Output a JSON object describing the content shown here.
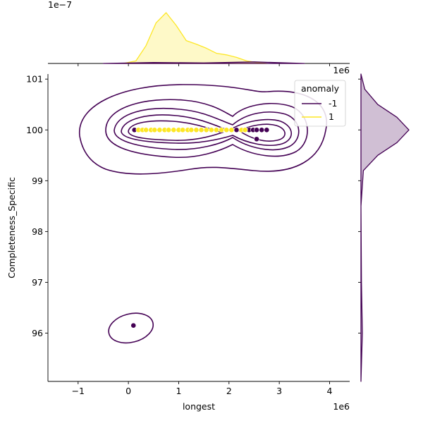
{
  "chart_data": {
    "type": "scatter",
    "title": "",
    "xlabel": "longest",
    "ylabel": "Completeness_Specific",
    "x_offset_text": "1e6",
    "y_top_offset_text": "1e6",
    "marg_x_offset_text": "1e−7",
    "xlim": [
      -1.6,
      4.4
    ],
    "ylim": [
      95.05,
      101.1
    ],
    "x_ticks": [
      "−1",
      "0",
      "1",
      "2",
      "3",
      "4"
    ],
    "x_tick_values": [
      -1,
      0,
      1,
      2,
      3,
      4
    ],
    "y_ticks": [
      "96",
      "97",
      "98",
      "99",
      "100",
      "101"
    ],
    "y_tick_values": [
      96,
      97,
      98,
      99,
      100,
      101
    ],
    "legend": {
      "title": "anomaly",
      "position": "upper right",
      "entries": [
        {
          "label": "-1",
          "color": "#440154"
        },
        {
          "label": "1",
          "color": "#fde725"
        }
      ]
    },
    "colors": {
      "anomaly_neg": "#440154",
      "anomaly_pos": "#fde725"
    },
    "series": [
      {
        "name": "-1",
        "color": "#440154",
        "points": [
          {
            "x": 0.1,
            "y": 96.15
          },
          {
            "x": 0.12,
            "y": 100.0
          },
          {
            "x": 2.15,
            "y": 100.0
          },
          {
            "x": 2.4,
            "y": 100.0
          },
          {
            "x": 2.48,
            "y": 100.0
          },
          {
            "x": 2.55,
            "y": 100.0
          },
          {
            "x": 2.65,
            "y": 100.0
          },
          {
            "x": 2.75,
            "y": 100.0
          },
          {
            "x": 2.55,
            "y": 99.82
          }
        ]
      },
      {
        "name": "1",
        "color": "#fde725",
        "points": [
          {
            "x": 0.2,
            "y": 100.0
          },
          {
            "x": 0.28,
            "y": 100.0
          },
          {
            "x": 0.35,
            "y": 100.0
          },
          {
            "x": 0.45,
            "y": 100.0
          },
          {
            "x": 0.52,
            "y": 100.0
          },
          {
            "x": 0.62,
            "y": 100.0
          },
          {
            "x": 0.72,
            "y": 100.0
          },
          {
            "x": 0.8,
            "y": 100.0
          },
          {
            "x": 0.9,
            "y": 100.0
          },
          {
            "x": 1.0,
            "y": 100.0
          },
          {
            "x": 1.08,
            "y": 100.0
          },
          {
            "x": 1.18,
            "y": 100.0
          },
          {
            "x": 1.25,
            "y": 100.0
          },
          {
            "x": 1.35,
            "y": 100.0
          },
          {
            "x": 1.45,
            "y": 100.0
          },
          {
            "x": 1.55,
            "y": 100.0
          },
          {
            "x": 1.65,
            "y": 100.0
          },
          {
            "x": 1.75,
            "y": 100.0
          },
          {
            "x": 1.85,
            "y": 100.0
          },
          {
            "x": 1.95,
            "y": 100.0
          },
          {
            "x": 2.05,
            "y": 100.0
          },
          {
            "x": 2.25,
            "y": 100.0
          },
          {
            "x": 2.32,
            "y": 100.0
          }
        ]
      }
    ],
    "contours": [
      {
        "cx": 0.05,
        "cy": 96.1,
        "rx": 0.45,
        "ry": 0.28
      },
      {
        "cx": 1.5,
        "cy": 100.0,
        "rx": 2.5,
        "ry": 0.88
      }
    ],
    "marginal_x": [
      {
        "series": "1",
        "color": "#fde725",
        "x": [
          -0.1,
          0.15,
          0.35,
          0.55,
          0.75,
          0.95,
          1.15,
          1.35,
          1.55,
          1.75,
          1.95,
          2.15,
          2.35,
          2.55,
          2.75
        ],
        "density": [
          0.0,
          0.05,
          0.35,
          0.8,
          1.0,
          0.75,
          0.45,
          0.38,
          0.3,
          0.2,
          0.17,
          0.12,
          0.05,
          0.02,
          0.0
        ]
      },
      {
        "series": "-1",
        "color": "#440154",
        "x": [
          -0.5,
          0.5,
          1.5,
          2.5,
          3.5
        ],
        "density": [
          0.0,
          0.02,
          0.01,
          0.03,
          0.0
        ]
      }
    ],
    "marginal_y": [
      {
        "series": "-1",
        "color": "#440154",
        "y": [
          95.05,
          96.0,
          97.0,
          98.5,
          99.2,
          99.5,
          99.75,
          100.0,
          100.25,
          100.5,
          100.8,
          101.1
        ],
        "density": [
          0.0,
          0.03,
          0.01,
          0.0,
          0.05,
          0.35,
          0.75,
          1.0,
          0.75,
          0.35,
          0.08,
          0.0
        ]
      }
    ]
  }
}
